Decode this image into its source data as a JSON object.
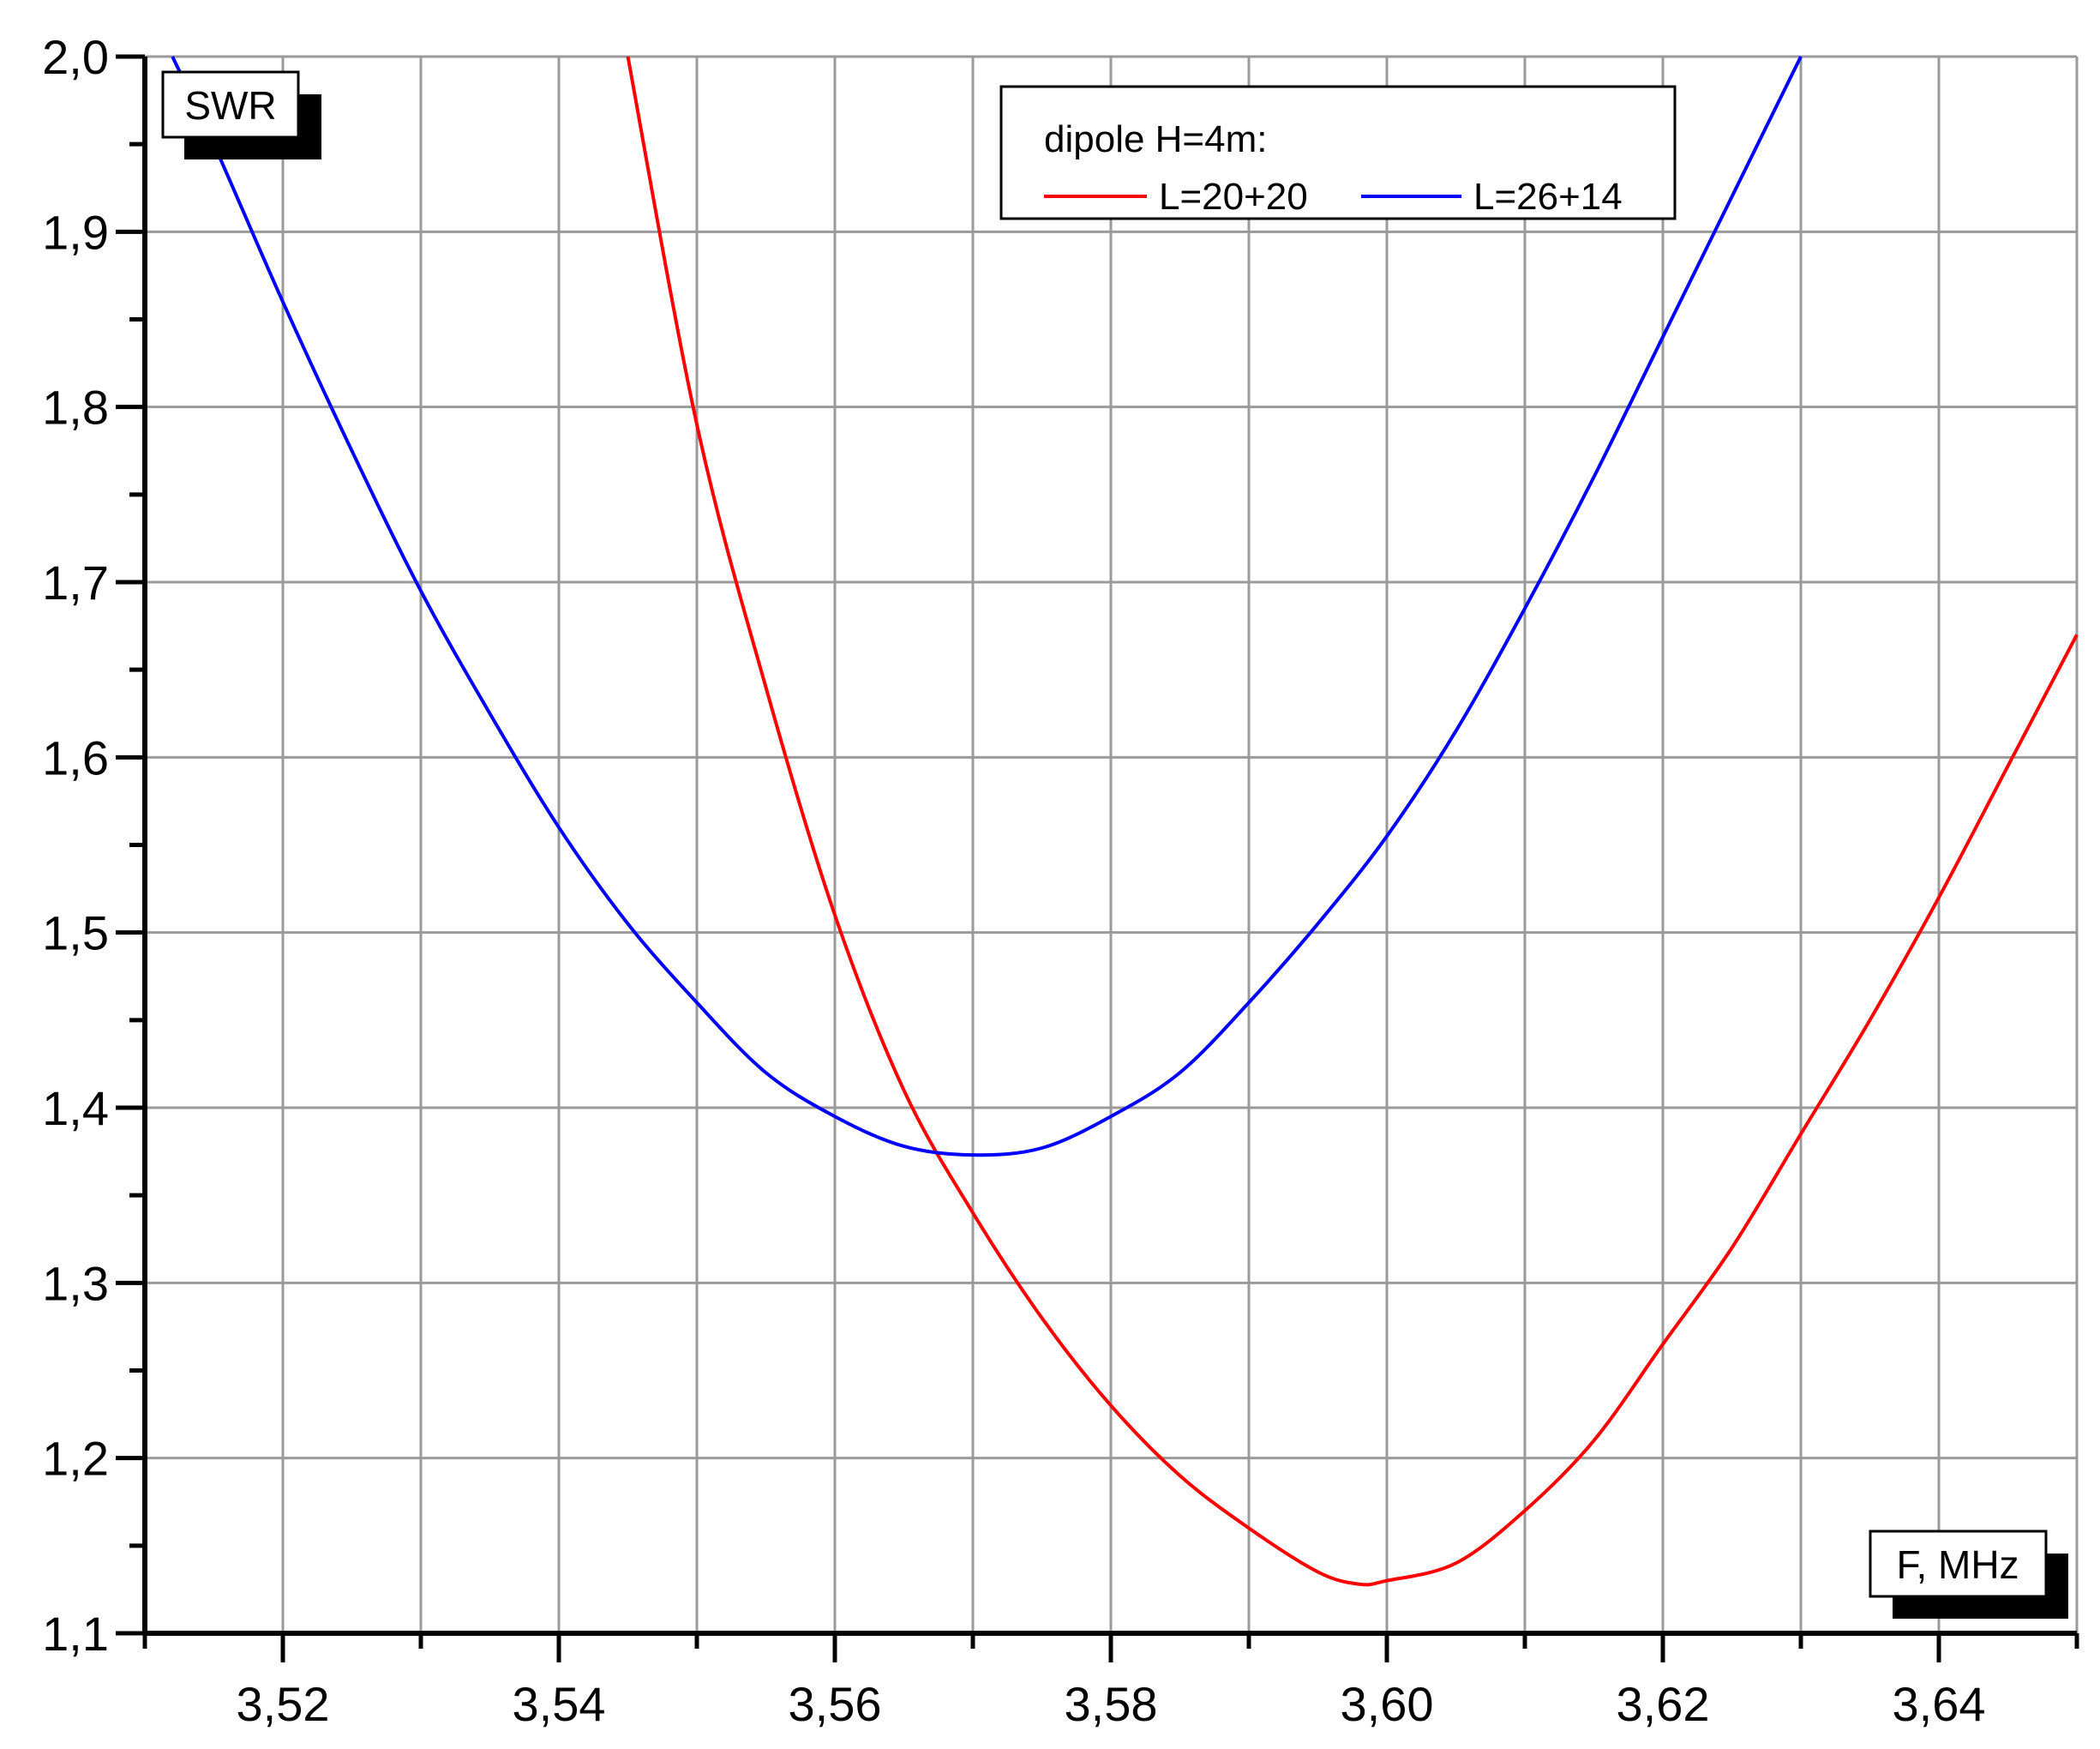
{
  "chart_data": {
    "type": "line",
    "xlabel": "F, MHz",
    "ylabel": "SWR",
    "xlim": [
      3.51,
      3.65
    ],
    "ylim": [
      1.1,
      2.0
    ],
    "x_ticks": [
      3.52,
      3.54,
      3.56,
      3.58,
      3.6,
      3.62,
      3.64
    ],
    "x_tick_labels": [
      "3,52",
      "3,54",
      "3,56",
      "3,58",
      "3,60",
      "3,62",
      "3,64"
    ],
    "y_ticks": [
      1.1,
      1.2,
      1.3,
      1.4,
      1.5,
      1.6,
      1.7,
      1.8,
      1.9,
      2.0
    ],
    "y_tick_labels": [
      "1,1",
      "1,2",
      "1,3",
      "1,4",
      "1,5",
      "1,6",
      "1,7",
      "1,8",
      "1,9",
      "2,0"
    ],
    "grid": true,
    "legend": {
      "title": "dipole H=4m:",
      "placement": "top-center"
    },
    "series": [
      {
        "name": "L=20+20",
        "color": "#ff0000",
        "x": [
          3.545,
          3.55,
          3.555,
          3.56,
          3.565,
          3.57,
          3.575,
          3.58,
          3.585,
          3.59,
          3.595,
          3.598,
          3.6,
          3.605,
          3.61,
          3.615,
          3.62,
          3.625,
          3.63,
          3.635,
          3.64,
          3.645,
          3.65
        ],
        "y": [
          2.0,
          1.79,
          1.64,
          1.51,
          1.41,
          1.34,
          1.28,
          1.23,
          1.19,
          1.16,
          1.135,
          1.128,
          1.13,
          1.14,
          1.17,
          1.21,
          1.265,
          1.32,
          1.385,
          1.45,
          1.52,
          1.595,
          1.67
        ]
      },
      {
        "name": "L=26+14",
        "color": "#0000ff",
        "x": [
          3.512,
          3.515,
          3.52,
          3.525,
          3.53,
          3.535,
          3.54,
          3.545,
          3.55,
          3.555,
          3.56,
          3.565,
          3.57,
          3.575,
          3.58,
          3.585,
          3.59,
          3.595,
          3.6,
          3.605,
          3.61,
          3.615,
          3.62,
          3.625,
          3.63
        ],
        "y": [
          2.0,
          1.95,
          1.86,
          1.775,
          1.695,
          1.625,
          1.56,
          1.505,
          1.46,
          1.42,
          1.395,
          1.378,
          1.373,
          1.377,
          1.395,
          1.42,
          1.46,
          1.505,
          1.555,
          1.615,
          1.685,
          1.76,
          1.84,
          1.92,
          2.0
        ]
      }
    ]
  }
}
